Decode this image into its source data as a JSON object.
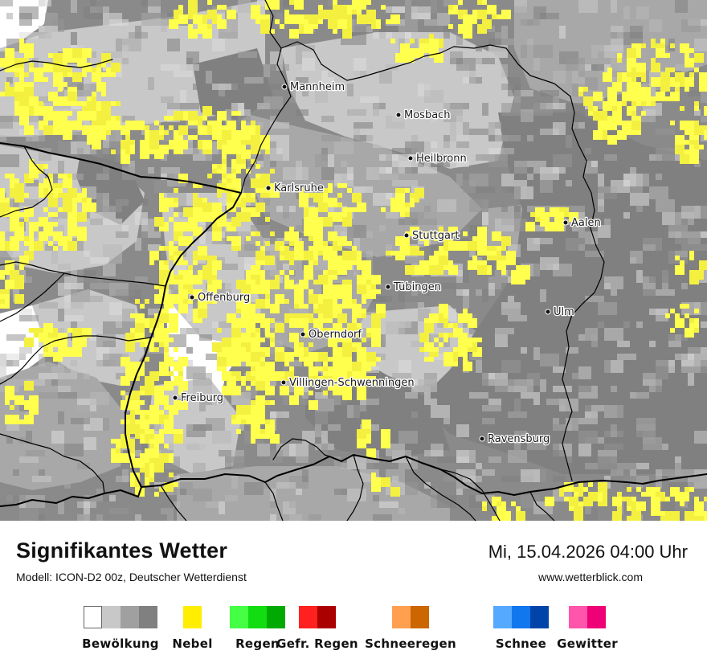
{
  "map": {
    "cities": [
      {
        "name": "Mannheim"
      },
      {
        "name": "Mosbach"
      },
      {
        "name": "Heilbronn"
      },
      {
        "name": "Karlsruhe"
      },
      {
        "name": "Aalen"
      },
      {
        "name": "Stuttgart"
      },
      {
        "name": "Tübingen"
      },
      {
        "name": "Offenburg"
      },
      {
        "name": "Ulm"
      },
      {
        "name": "Oberndorf"
      },
      {
        "name": "Villingen-Schwenningen"
      },
      {
        "name": "Freiburg"
      },
      {
        "name": "Ravensburg"
      }
    ],
    "colors": {
      "cloud_white": "#ffffff",
      "cloud_light": "#c8c8c8",
      "cloud_mid": "#a8a8a8",
      "cloud_dark": "#808080",
      "fog": "#ffff4d",
      "border": "#000000"
    }
  },
  "footer": {
    "title": "Signifikantes Wetter",
    "model": "Modell: ICON-D2 00z, Deutscher Wetterdienst",
    "datetime": "Mi, 15.04.2026 04:00 Uhr",
    "source": "www.wetterblick.com"
  },
  "legend": [
    {
      "label": "Bewölkung",
      "colors": [
        "#ffffff",
        "#c8c8c8",
        "#a0a0a0",
        "#808080"
      ]
    },
    {
      "label": "Nebel",
      "colors": [
        "#ffee00"
      ]
    },
    {
      "label": "Regen",
      "colors": [
        "#44ff44",
        "#11dd11",
        "#00aa00"
      ]
    },
    {
      "label": "Gefr. Regen",
      "colors": [
        "#ff2020",
        "#aa0000"
      ]
    },
    {
      "label": "Schneeregen",
      "colors": [
        "#ffa050",
        "#cc6600"
      ]
    },
    {
      "label": "Schnee",
      "colors": [
        "#55aaff",
        "#1177ee",
        "#0044aa"
      ]
    },
    {
      "label": "Gewitter",
      "colors": [
        "#ff55aa",
        "#ee0077"
      ]
    }
  ]
}
